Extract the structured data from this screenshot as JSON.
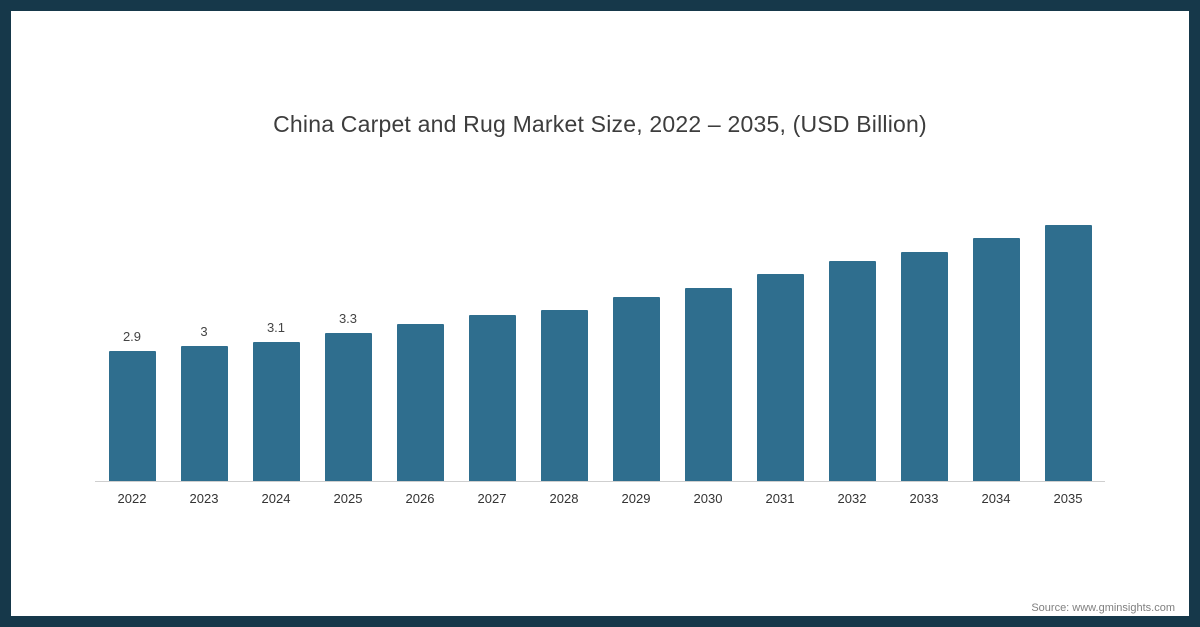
{
  "chart_data": {
    "type": "bar",
    "title": "China Carpet and Rug Market Size, 2022 – 2035, (USD Billion)",
    "categories": [
      "2022",
      "2023",
      "2024",
      "2025",
      "2026",
      "2027",
      "2028",
      "2029",
      "2030",
      "2031",
      "2032",
      "2033",
      "2034",
      "2035"
    ],
    "values": [
      2.9,
      3.0,
      3.1,
      3.3,
      3.5,
      3.7,
      3.8,
      4.1,
      4.3,
      4.6,
      4.9,
      5.1,
      5.4,
      5.7
    ],
    "data_labels_shown": [
      "2.9",
      "3",
      "3.1",
      "3.3",
      "",
      "",
      "",
      "",
      "",
      "",
      "",
      "",
      "",
      ""
    ],
    "bar_color": "#2f6e8e",
    "xlabel": "",
    "ylabel": "",
    "ylim": [
      0,
      6
    ],
    "grid": false,
    "legend": false,
    "frame_color": "#16384a"
  },
  "source": {
    "text": "Source: www.gminsights.com"
  }
}
